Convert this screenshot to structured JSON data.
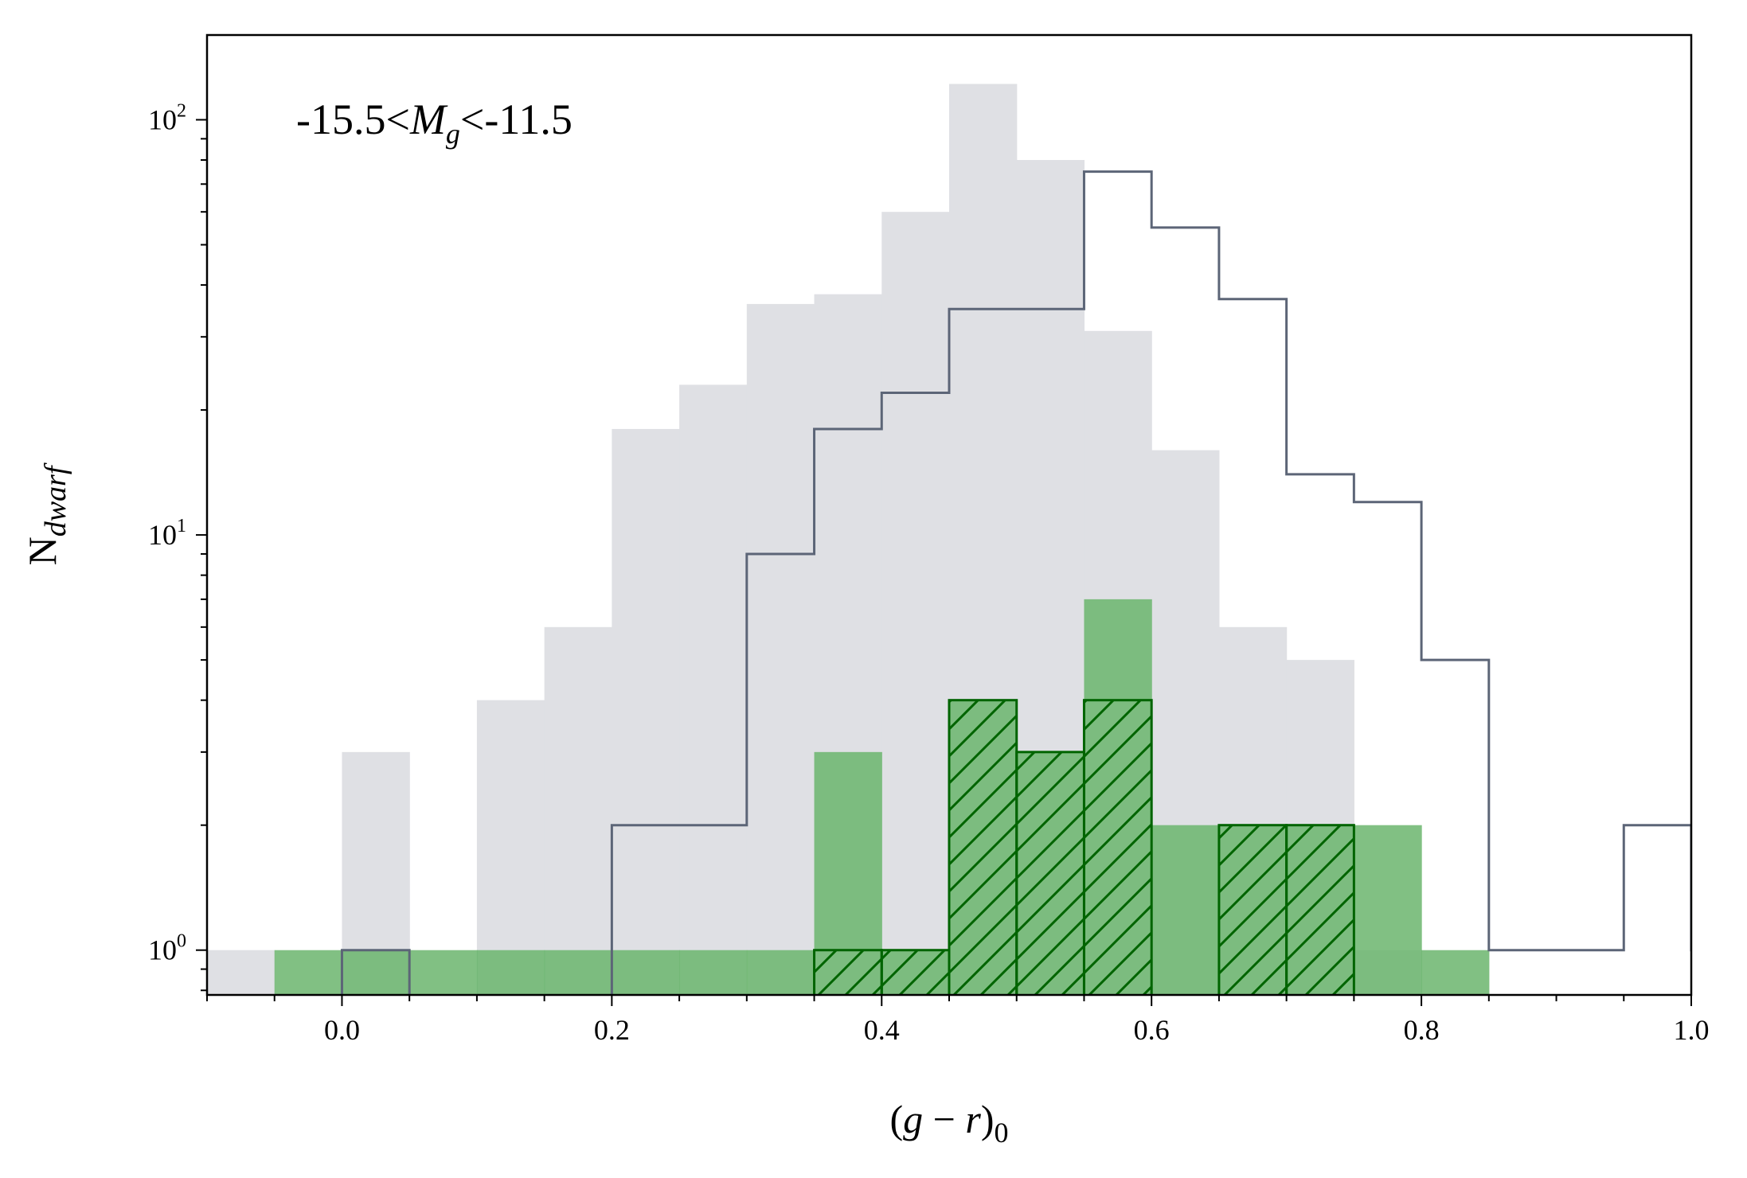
{
  "chart_data": {
    "type": "bar",
    "subtype": "histogram",
    "annotation": {
      "prefix": "-15.5<",
      "symbol": "M",
      "subscript": "g",
      "suffix": "<-11.5"
    },
    "xlabel": {
      "open": "(",
      "g": "g",
      "minus": " − ",
      "r": "r",
      "close": ")",
      "sub": "0"
    },
    "ylabel": {
      "base": "N",
      "sub": "dwarf"
    },
    "xlim": [
      -0.1,
      1.0
    ],
    "ylim": [
      0.78,
      160
    ],
    "yscale": "log",
    "grid": false,
    "legend": "none",
    "bin_width": 0.05,
    "x_ticks": [
      {
        "value": 0.0,
        "label": "0.0"
      },
      {
        "value": 0.2,
        "label": "0.2"
      },
      {
        "value": 0.4,
        "label": "0.4"
      },
      {
        "value": 0.6,
        "label": "0.6"
      },
      {
        "value": 0.8,
        "label": "0.8"
      },
      {
        "value": 1.0,
        "label": "1.0"
      }
    ],
    "y_ticks": [
      {
        "value": 1,
        "base": "10",
        "exp": "0"
      },
      {
        "value": 10,
        "base": "10",
        "exp": "1"
      },
      {
        "value": 100,
        "base": "10",
        "exp": "2"
      }
    ],
    "series": [
      {
        "style": "filled",
        "color": "#dfe0e4",
        "bins": [
          {
            "x0": -0.1,
            "count": 1
          },
          {
            "x0": 0.0,
            "count": 3
          },
          {
            "x0": 0.1,
            "count": 4
          },
          {
            "x0": 0.15,
            "count": 6
          },
          {
            "x0": 0.2,
            "count": 18
          },
          {
            "x0": 0.25,
            "count": 23
          },
          {
            "x0": 0.3,
            "count": 36
          },
          {
            "x0": 0.35,
            "count": 38
          },
          {
            "x0": 0.4,
            "count": 60
          },
          {
            "x0": 0.45,
            "count": 122
          },
          {
            "x0": 0.5,
            "count": 80
          },
          {
            "x0": 0.55,
            "count": 31
          },
          {
            "x0": 0.6,
            "count": 16
          },
          {
            "x0": 0.65,
            "count": 6
          },
          {
            "x0": 0.7,
            "count": 5
          },
          {
            "x0": 0.75,
            "count": 1
          }
        ]
      },
      {
        "style": "filled",
        "color": "#6bb56d",
        "opacity": 0.85,
        "bins": [
          {
            "x0": -0.05,
            "count": 1
          },
          {
            "x0": 0.0,
            "count": 1
          },
          {
            "x0": 0.05,
            "count": 1
          },
          {
            "x0": 0.1,
            "count": 1
          },
          {
            "x0": 0.15,
            "count": 1
          },
          {
            "x0": 0.2,
            "count": 1
          },
          {
            "x0": 0.25,
            "count": 1
          },
          {
            "x0": 0.3,
            "count": 1
          },
          {
            "x0": 0.35,
            "count": 3
          },
          {
            "x0": 0.4,
            "count": 1
          },
          {
            "x0": 0.45,
            "count": 4
          },
          {
            "x0": 0.5,
            "count": 3
          },
          {
            "x0": 0.55,
            "count": 7
          },
          {
            "x0": 0.6,
            "count": 2
          },
          {
            "x0": 0.65,
            "count": 2
          },
          {
            "x0": 0.7,
            "count": 2
          },
          {
            "x0": 0.75,
            "count": 2
          },
          {
            "x0": 0.8,
            "count": 1
          }
        ]
      },
      {
        "style": "step",
        "color": "#5c6577",
        "bins": [
          {
            "x0": 0.0,
            "count": 1
          },
          {
            "x0": 0.05,
            "count": 0
          },
          {
            "x0": 0.1,
            "count": 0
          },
          {
            "x0": 0.15,
            "count": 0
          },
          {
            "x0": 0.2,
            "count": 2
          },
          {
            "x0": 0.25,
            "count": 2
          },
          {
            "x0": 0.3,
            "count": 9
          },
          {
            "x0": 0.35,
            "count": 18
          },
          {
            "x0": 0.4,
            "count": 22
          },
          {
            "x0": 0.45,
            "count": 35
          },
          {
            "x0": 0.5,
            "count": 35
          },
          {
            "x0": 0.55,
            "count": 75
          },
          {
            "x0": 0.6,
            "count": 55
          },
          {
            "x0": 0.65,
            "count": 37
          },
          {
            "x0": 0.7,
            "count": 14
          },
          {
            "x0": 0.75,
            "count": 12
          },
          {
            "x0": 0.8,
            "count": 5
          },
          {
            "x0": 0.85,
            "count": 1
          },
          {
            "x0": 0.9,
            "count": 1
          },
          {
            "x0": 0.95,
            "count": 2
          },
          {
            "x0": 1.0,
            "count": 1
          }
        ]
      },
      {
        "style": "hatched",
        "color": "#006400",
        "bins": [
          {
            "x0": 0.35,
            "count": 1
          },
          {
            "x0": 0.4,
            "count": 1
          },
          {
            "x0": 0.45,
            "count": 4
          },
          {
            "x0": 0.5,
            "count": 3
          },
          {
            "x0": 0.55,
            "count": 4
          },
          {
            "x0": 0.65,
            "count": 2
          },
          {
            "x0": 0.7,
            "count": 2
          }
        ]
      }
    ]
  }
}
